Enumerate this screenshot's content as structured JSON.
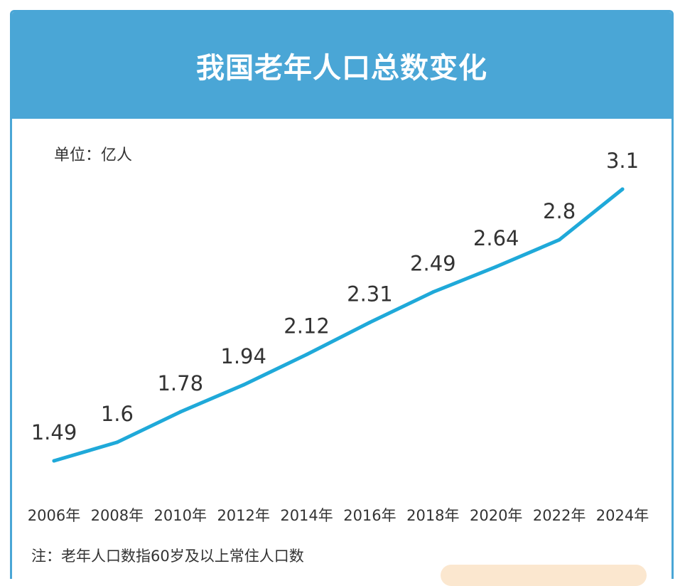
{
  "title": "我国老年人口总数变化",
  "unit_label": "单位：亿人",
  "note": "注：老年人口数指60岁及以上常住人口数",
  "colors": {
    "header": "#4aa6d6",
    "line": "#1fa9d9",
    "text": "#333333"
  },
  "chart_data": {
    "type": "line",
    "title": "我国老年人口总数变化",
    "categories": [
      "2006年",
      "2008年",
      "2010年",
      "2012年",
      "2014年",
      "2016年",
      "2018年",
      "2020年",
      "2022年",
      "2024年"
    ],
    "values": [
      1.49,
      1.6,
      1.78,
      1.94,
      2.12,
      2.31,
      2.49,
      2.64,
      2.8,
      3.1
    ],
    "data_labels": [
      "1.49",
      "1.6",
      "1.78",
      "1.94",
      "2.12",
      "2.31",
      "2.49",
      "2.64",
      "2.8",
      "3.1"
    ],
    "ylabel": "单位：亿人",
    "xlabel": "",
    "grid": false,
    "legend": "none"
  }
}
